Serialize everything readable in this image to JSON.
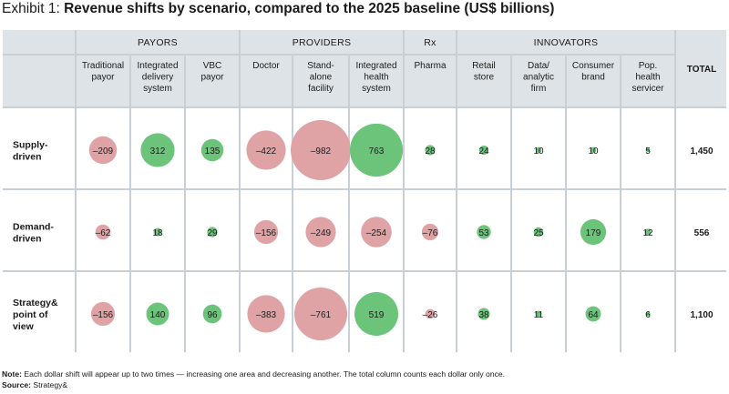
{
  "exhibit": {
    "label": "Exhibit 1:",
    "title": "Revenue shifts by scenario, compared to the 2025 baseline (US$ billions)"
  },
  "groups": [
    "PAYORS",
    "PROVIDERS",
    "Rx",
    "INNOVATORS"
  ],
  "columns": [
    {
      "group": 0,
      "label": [
        "Traditional",
        "payor"
      ]
    },
    {
      "group": 0,
      "label": [
        "Integrated",
        "delivery",
        "system"
      ]
    },
    {
      "group": 0,
      "label": [
        "VBC",
        "payor"
      ]
    },
    {
      "group": 1,
      "label": [
        "Doctor"
      ]
    },
    {
      "group": 1,
      "label": [
        "Stand-",
        "alone",
        "facility"
      ]
    },
    {
      "group": 1,
      "label": [
        "Integrated",
        "health",
        "system"
      ]
    },
    {
      "group": 2,
      "label": [
        "Pharma"
      ]
    },
    {
      "group": 3,
      "label": [
        "Retail",
        "store"
      ]
    },
    {
      "group": 3,
      "label": [
        "Data/",
        "analytic",
        "firm"
      ]
    },
    {
      "group": 3,
      "label": [
        "Consumer",
        "brand"
      ]
    },
    {
      "group": 3,
      "label": [
        "Pop.",
        "health",
        "servicer"
      ]
    }
  ],
  "total_header": "TOTAL",
  "chart_data": {
    "type": "bubble-table",
    "title": "Revenue shifts by scenario, compared to the 2025 baseline (US$ billions)",
    "colors": {
      "positive": "#6cc47a",
      "negative": "#dfa3a6"
    },
    "rows": [
      {
        "label": [
          "Supply-",
          "driven"
        ],
        "values": [
          -209,
          312,
          135,
          -422,
          -982,
          763,
          28,
          24,
          10,
          10,
          5
        ],
        "total": "1,450"
      },
      {
        "label": [
          "Demand-",
          "driven"
        ],
        "values": [
          -62,
          18,
          29,
          -156,
          -249,
          -254,
          -76,
          53,
          25,
          179,
          12
        ],
        "total": "556"
      },
      {
        "label": [
          "Strategy&",
          "point of",
          "view"
        ],
        "values": [
          -156,
          140,
          96,
          -383,
          -761,
          519,
          -26,
          38,
          11,
          64,
          6
        ],
        "total": "1,100"
      }
    ]
  },
  "notes": {
    "note_label": "Note:",
    "note_text": " Each dollar shift will appear up to two times — increasing one area and decreasing another. The total column counts each dollar only once.",
    "source_label": "Source:",
    "source_text": " Strategy&"
  }
}
